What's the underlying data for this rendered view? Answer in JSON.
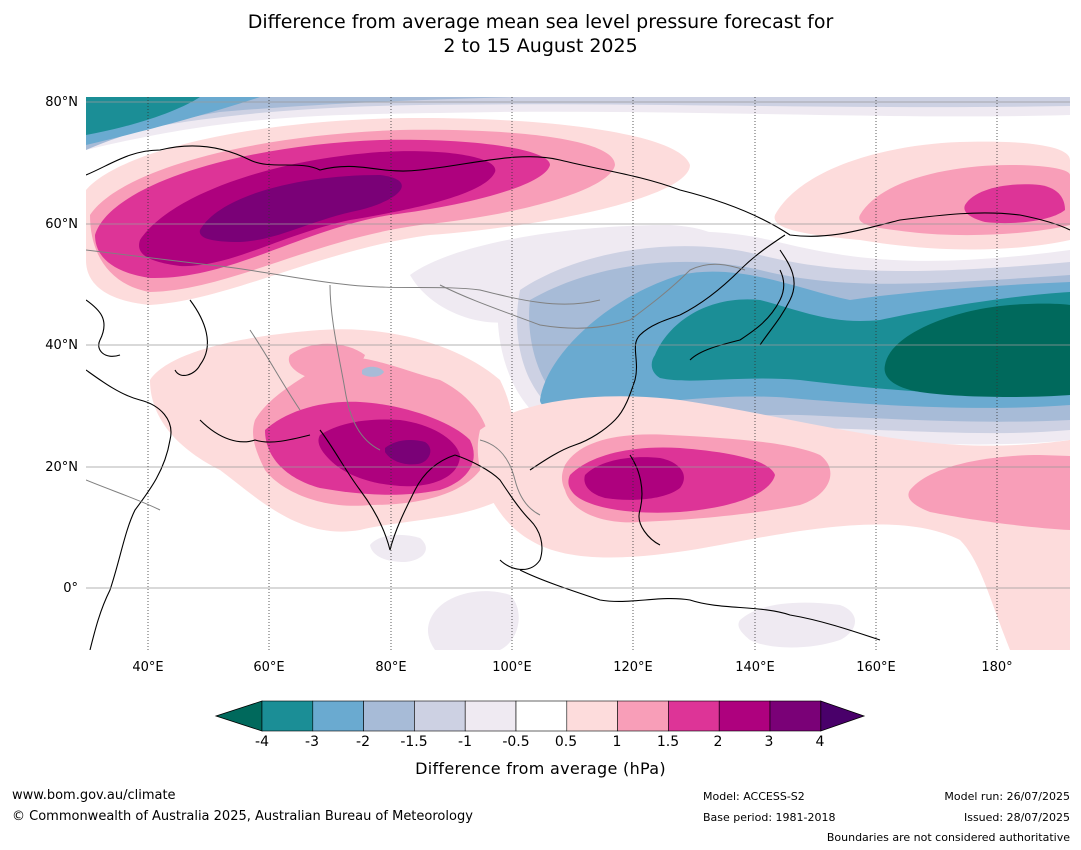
{
  "title_line1": "Difference from average mean sea level pressure forecast for",
  "title_line2": "2 to 15 August 2025",
  "map": {
    "lat_ticks": [
      "80°N",
      "60°N",
      "40°N",
      "20°N",
      "0°"
    ],
    "lon_ticks": [
      "40°E",
      "60°E",
      "80°E",
      "100°E",
      "120°E",
      "140°E",
      "160°E",
      "180°"
    ],
    "extent": {
      "lon_min": 30,
      "lon_max": 192,
      "lat_min": -10,
      "lat_max": 81
    }
  },
  "colorbar": {
    "label": "Difference from average (hPa)",
    "tick_labels": [
      "-4",
      "-3",
      "-2",
      "-1.5",
      "-1",
      "-0.5",
      "0.5",
      "1",
      "1.5",
      "2",
      "3",
      "4"
    ],
    "colors": {
      "below_-4": "#00695c",
      "-4_-3": "#1b8e96",
      "-3_-2": "#6aaad0",
      "-2_-1.5": "#a7bbd7",
      "-1.5_-1": "#cdd1e3",
      "-1_-0.5": "#efeaf2",
      "-0.5_0.5": "#ffffff",
      "0.5_1": "#fddcdc",
      "1_1.5": "#f89eb8",
      "1.5_2": "#dd3497",
      "2_3": "#ae017e",
      "3_4": "#7a0177",
      "above_4": "#49006a"
    }
  },
  "footer": {
    "url": "www.bom.gov.au/climate",
    "copyright": "© Commonwealth of Australia 2025, Australian Bureau of Meteorology",
    "model": "Model: ACCESS-S2",
    "base_period": "Base period: 1981-2018",
    "model_run": "Model run: 26/07/2025",
    "issued": "Issued: 28/07/2025",
    "disclaimer": "Boundaries are not considered authoritative"
  }
}
